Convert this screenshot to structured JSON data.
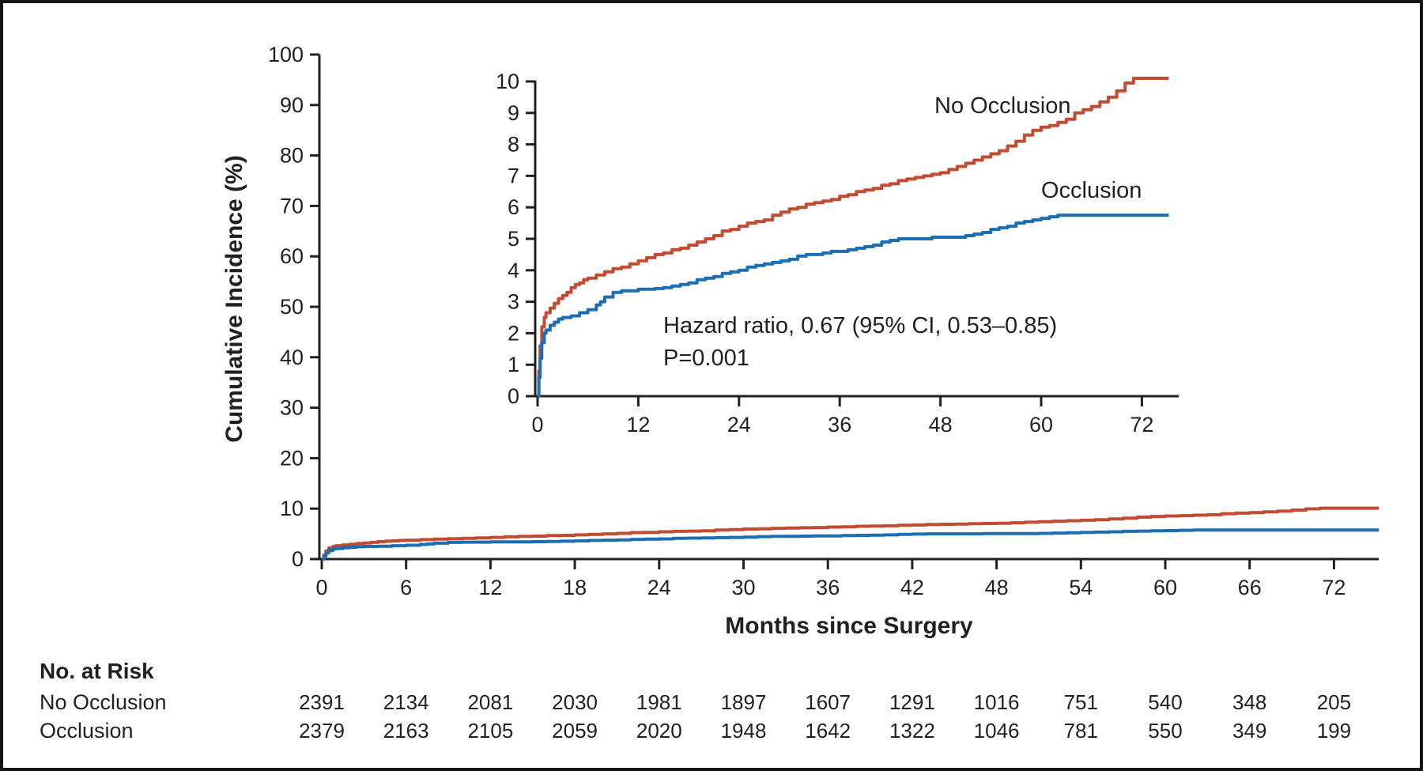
{
  "colors": {
    "no_occlusion": "#c24b32",
    "occlusion": "#1c6eb3",
    "axis": "#231f20",
    "text": "#231f20"
  },
  "chart_data": {
    "type": "line",
    "subtype": "kaplan-meier-step",
    "title": "",
    "xlabel": "Months since Surgery",
    "ylabel": "Cumulative Incidence (%)",
    "main_axis": {
      "xlim": [
        0,
        75.2
      ],
      "ylim": [
        0,
        100
      ],
      "xticks": [
        0,
        6,
        12,
        18,
        24,
        30,
        36,
        42,
        48,
        54,
        60,
        66,
        72
      ],
      "yticks": [
        0,
        10,
        20,
        30,
        40,
        50,
        60,
        70,
        80,
        90,
        100
      ],
      "grid": false,
      "legend": "none"
    },
    "inset_axis": {
      "xlim": [
        0,
        76.3
      ],
      "ylim": [
        0,
        10
      ],
      "xticks": [
        0,
        12,
        24,
        36,
        48,
        60,
        72
      ],
      "yticks": [
        0,
        1,
        2,
        3,
        4,
        5,
        6,
        7,
        8,
        9,
        10
      ],
      "grid": false,
      "legend": "inline-labels"
    },
    "series": [
      {
        "name": "No Occlusion",
        "color_key": "no_occlusion",
        "points": [
          [
            0,
            0
          ],
          [
            0.15,
            0.8
          ],
          [
            0.3,
            1.6
          ],
          [
            0.5,
            2.2
          ],
          [
            0.8,
            2.5
          ],
          [
            1,
            2.65
          ],
          [
            1.5,
            2.8
          ],
          [
            2,
            2.95
          ],
          [
            2.5,
            3.1
          ],
          [
            3,
            3.2
          ],
          [
            3.5,
            3.3
          ],
          [
            4,
            3.45
          ],
          [
            4.5,
            3.55
          ],
          [
            5,
            3.6
          ],
          [
            5.5,
            3.7
          ],
          [
            6,
            3.75
          ],
          [
            7,
            3.85
          ],
          [
            8,
            3.95
          ],
          [
            9,
            4.05
          ],
          [
            10,
            4.1
          ],
          [
            11,
            4.2
          ],
          [
            12,
            4.3
          ],
          [
            13,
            4.4
          ],
          [
            14,
            4.5
          ],
          [
            15,
            4.55
          ],
          [
            16,
            4.65
          ],
          [
            17,
            4.7
          ],
          [
            18,
            4.8
          ],
          [
            19,
            4.9
          ],
          [
            20,
            5.0
          ],
          [
            21,
            5.1
          ],
          [
            22,
            5.25
          ],
          [
            23,
            5.3
          ],
          [
            24,
            5.4
          ],
          [
            25,
            5.5
          ],
          [
            26,
            5.55
          ],
          [
            27,
            5.6
          ],
          [
            28,
            5.75
          ],
          [
            29,
            5.85
          ],
          [
            30,
            5.95
          ],
          [
            31,
            6.0
          ],
          [
            32,
            6.1
          ],
          [
            33,
            6.15
          ],
          [
            34,
            6.2
          ],
          [
            35,
            6.25
          ],
          [
            36,
            6.35
          ],
          [
            37,
            6.4
          ],
          [
            38,
            6.5
          ],
          [
            39,
            6.55
          ],
          [
            40,
            6.6
          ],
          [
            41,
            6.7
          ],
          [
            42,
            6.75
          ],
          [
            43,
            6.85
          ],
          [
            44,
            6.9
          ],
          [
            45,
            6.95
          ],
          [
            46,
            7.0
          ],
          [
            47,
            7.05
          ],
          [
            48,
            7.1
          ],
          [
            49,
            7.2
          ],
          [
            50,
            7.3
          ],
          [
            51,
            7.4
          ],
          [
            52,
            7.5
          ],
          [
            53,
            7.6
          ],
          [
            54,
            7.7
          ],
          [
            55,
            7.8
          ],
          [
            56,
            7.95
          ],
          [
            57,
            8.1
          ],
          [
            58,
            8.3
          ],
          [
            59,
            8.45
          ],
          [
            60,
            8.55
          ],
          [
            61,
            8.6
          ],
          [
            62,
            8.7
          ],
          [
            63,
            8.8
          ],
          [
            64,
            9.0
          ],
          [
            65,
            9.1
          ],
          [
            66,
            9.2
          ],
          [
            67,
            9.35
          ],
          [
            68,
            9.5
          ],
          [
            69,
            9.7
          ],
          [
            70,
            9.95
          ],
          [
            71,
            10.1
          ],
          [
            75.2,
            10.1
          ]
        ]
      },
      {
        "name": "Occlusion",
        "color_key": "occlusion",
        "points": [
          [
            0,
            0
          ],
          [
            0.15,
            0.6
          ],
          [
            0.3,
            1.2
          ],
          [
            0.5,
            1.7
          ],
          [
            0.8,
            2.0
          ],
          [
            1,
            2.1
          ],
          [
            1.5,
            2.25
          ],
          [
            2,
            2.35
          ],
          [
            2.5,
            2.45
          ],
          [
            3,
            2.5
          ],
          [
            4,
            2.55
          ],
          [
            5,
            2.65
          ],
          [
            6,
            2.75
          ],
          [
            7,
            2.9
          ],
          [
            7.5,
            3.0
          ],
          [
            8,
            3.15
          ],
          [
            9,
            3.3
          ],
          [
            10,
            3.35
          ],
          [
            12,
            3.4
          ],
          [
            14,
            3.42
          ],
          [
            15,
            3.45
          ],
          [
            16,
            3.5
          ],
          [
            17,
            3.55
          ],
          [
            18,
            3.6
          ],
          [
            19,
            3.7
          ],
          [
            20,
            3.75
          ],
          [
            21,
            3.8
          ],
          [
            22,
            3.9
          ],
          [
            23,
            3.95
          ],
          [
            24,
            4.0
          ],
          [
            25,
            4.1
          ],
          [
            26,
            4.15
          ],
          [
            27,
            4.2
          ],
          [
            28,
            4.25
          ],
          [
            29,
            4.3
          ],
          [
            30,
            4.35
          ],
          [
            31,
            4.45
          ],
          [
            32,
            4.5
          ],
          [
            34,
            4.55
          ],
          [
            35,
            4.6
          ],
          [
            37,
            4.65
          ],
          [
            38,
            4.7
          ],
          [
            39,
            4.75
          ],
          [
            40,
            4.8
          ],
          [
            41,
            4.9
          ],
          [
            42,
            4.95
          ],
          [
            43,
            5.0
          ],
          [
            46,
            5.0
          ],
          [
            47,
            5.05
          ],
          [
            51,
            5.1
          ],
          [
            52,
            5.15
          ],
          [
            53,
            5.2
          ],
          [
            54,
            5.3
          ],
          [
            55,
            5.35
          ],
          [
            56,
            5.4
          ],
          [
            57,
            5.5
          ],
          [
            58,
            5.55
          ],
          [
            59,
            5.6
          ],
          [
            60,
            5.65
          ],
          [
            61,
            5.7
          ],
          [
            62,
            5.75
          ],
          [
            75.2,
            5.75
          ]
        ]
      }
    ],
    "annotation": {
      "line1": "Hazard ratio, 0.67 (95% CI, 0.53–0.85)",
      "line2": "P=0.001"
    },
    "inset_series_labels": {
      "no_occlusion": "No Occlusion",
      "occlusion": "Occlusion"
    }
  },
  "risk_table": {
    "title": "No. at Risk",
    "timepoints": [
      0,
      6,
      12,
      18,
      24,
      30,
      36,
      42,
      48,
      54,
      60,
      66,
      72
    ],
    "rows": [
      {
        "label": "No Occlusion",
        "values": [
          2391,
          2134,
          2081,
          2030,
          1981,
          1897,
          1607,
          1291,
          1016,
          751,
          540,
          348,
          205
        ]
      },
      {
        "label": "Occlusion",
        "values": [
          2379,
          2163,
          2105,
          2059,
          2020,
          1948,
          1642,
          1322,
          1046,
          781,
          550,
          349,
          199
        ]
      }
    ]
  }
}
